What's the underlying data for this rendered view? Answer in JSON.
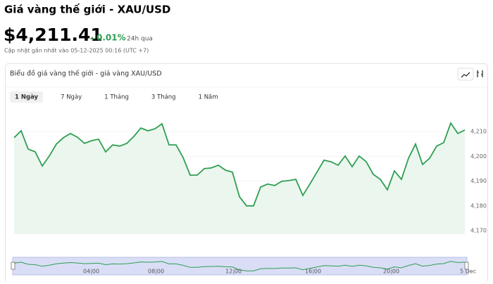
{
  "header": {
    "title": "Giá vàng thế giới - XAU/USD",
    "price": "$4,211.41",
    "change": "0.01%",
    "period": "24h qua",
    "updated": "Cập nhật gần nhất vào 05-12-2025 00:16 (UTC +7)"
  },
  "card": {
    "title": "Biểu đồ giá vàng thế giới - giá vàng XAU/USD",
    "tabs": [
      "1 Ngày",
      "7 Ngày",
      "1 Tháng",
      "3 Tháng",
      "1 Năm"
    ],
    "active_tab": 0
  },
  "chart_data": {
    "type": "line",
    "color": "#2f9e52",
    "values": [
      4207.5,
      4210.3,
      4202.9,
      4201.8,
      4196.1,
      4200.1,
      4204.9,
      4207.5,
      4209.2,
      4207.7,
      4205.2,
      4206.3,
      4206.9,
      4201.8,
      4204.6,
      4204.1,
      4205.2,
      4208.0,
      4211.4,
      4210.3,
      4211.1,
      4213.1,
      4204.6,
      4204.6,
      4199.5,
      4192.4,
      4192.4,
      4195.0,
      4195.3,
      4196.4,
      4194.4,
      4193.6,
      4183.7,
      4180.0,
      4180.0,
      4187.6,
      4188.8,
      4188.2,
      4189.9,
      4190.2,
      4190.7,
      4184.2,
      4188.8,
      4193.6,
      4198.4,
      4197.8,
      4196.4,
      4200.1,
      4195.8,
      4200.1,
      4197.8,
      4192.7,
      4190.7,
      4186.5,
      4194.1,
      4190.7,
      4199.2,
      4204.9,
      4196.7,
      4199.2,
      4204.1,
      4205.5,
      4213.4,
      4209.2,
      4210.6
    ],
    "ylim": [
      4168.6,
      4227.6
    ],
    "yticks": [
      {
        "value": 4170,
        "label": "4,170"
      },
      {
        "value": 4180,
        "label": "4,180"
      },
      {
        "value": 4190,
        "label": "4,190"
      },
      {
        "value": 4200,
        "label": "4,200"
      },
      {
        "value": 4210,
        "label": "4,210"
      }
    ],
    "xlim": [
      0,
      64
    ],
    "xticks": [
      {
        "value": 11,
        "label": "04:00"
      },
      {
        "value": 20.2,
        "label": "08:00"
      },
      {
        "value": 31.2,
        "label": "12:00"
      },
      {
        "value": 42.5,
        "label": "16:00"
      },
      {
        "value": 53.6,
        "label": "20:00"
      },
      {
        "value": 64.5,
        "label": "5 Dec"
      }
    ]
  }
}
